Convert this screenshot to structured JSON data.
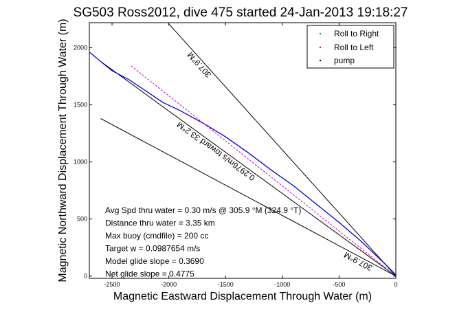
{
  "chart_data": {
    "type": "line",
    "title": "SG503 Ross2012, dive 475 started 24-Jan-2013 19:18:27",
    "xlabel": "Magnetic Eastward Displacement Through Water (m)",
    "ylabel": "Magnetic Northward Displacement Through Water (m)",
    "xlim": [
      -2700,
      0
    ],
    "ylim": [
      -20,
      2220
    ],
    "x_ticks": [
      "-2500",
      "-2000",
      "-1500",
      "-1000",
      "-500",
      "0"
    ],
    "x_tick_values": [
      -2500,
      -2000,
      -1500,
      -1000,
      -500,
      0
    ],
    "y_ticks": [
      "0",
      "500",
      "1000",
      "1500",
      "2000"
    ],
    "y_tick_values": [
      0,
      500,
      1000,
      1500,
      2000
    ],
    "grid": false,
    "legend_position": "top-right",
    "legend": [
      {
        "label": "Roll to Right",
        "color": "#00aa00",
        "marker": "dot"
      },
      {
        "label": "Roll to Left",
        "color": "#ff0000",
        "marker": "dot"
      },
      {
        "label": "pump",
        "color": "#000000",
        "marker": "dot"
      }
    ],
    "series": [
      {
        "color": "#0000cc",
        "x": [
          -2695,
          -2600,
          -2500,
          -2350,
          -2200,
          -2050,
          -1900,
          -1700,
          -1500,
          -1300,
          -1100,
          -900,
          -700,
          -500,
          -300,
          -100,
          0
        ],
        "y": [
          1960,
          1880,
          1800,
          1720,
          1620,
          1520,
          1450,
          1340,
          1220,
          1080,
          930,
          790,
          630,
          470,
          300,
          110,
          10
        ]
      },
      {
        "color": "#cc00cc",
        "style": "dashed",
        "x": [
          -2330,
          0
        ],
        "y": [
          1840,
          0
        ]
      }
    ],
    "reference_lines": [
      {
        "label": "307.9°M",
        "x": [
          -2000,
          0
        ],
        "y": [
          2210,
          0
        ]
      },
      {
        "label": "307.9°M",
        "x": [
          -2600,
          0
        ],
        "y": [
          1380,
          0
        ]
      },
      {
        "label": "0.2976m/s toward 33.2°M",
        "x": [
          -2600,
          0
        ],
        "y": [
          1880,
          0
        ]
      }
    ],
    "annotations": [
      "Avg Spd thru water =  0.30 m/s @ 305.9 °M (324.9 °T)",
      "Distance thru water =  3.35 km",
      "Max buoy (cmdfile) = 200 cc",
      "Target w = 0.0987654 m/s",
      "Model glide slope = 0.3690",
      "Net glide slope = 0.4775"
    ]
  }
}
